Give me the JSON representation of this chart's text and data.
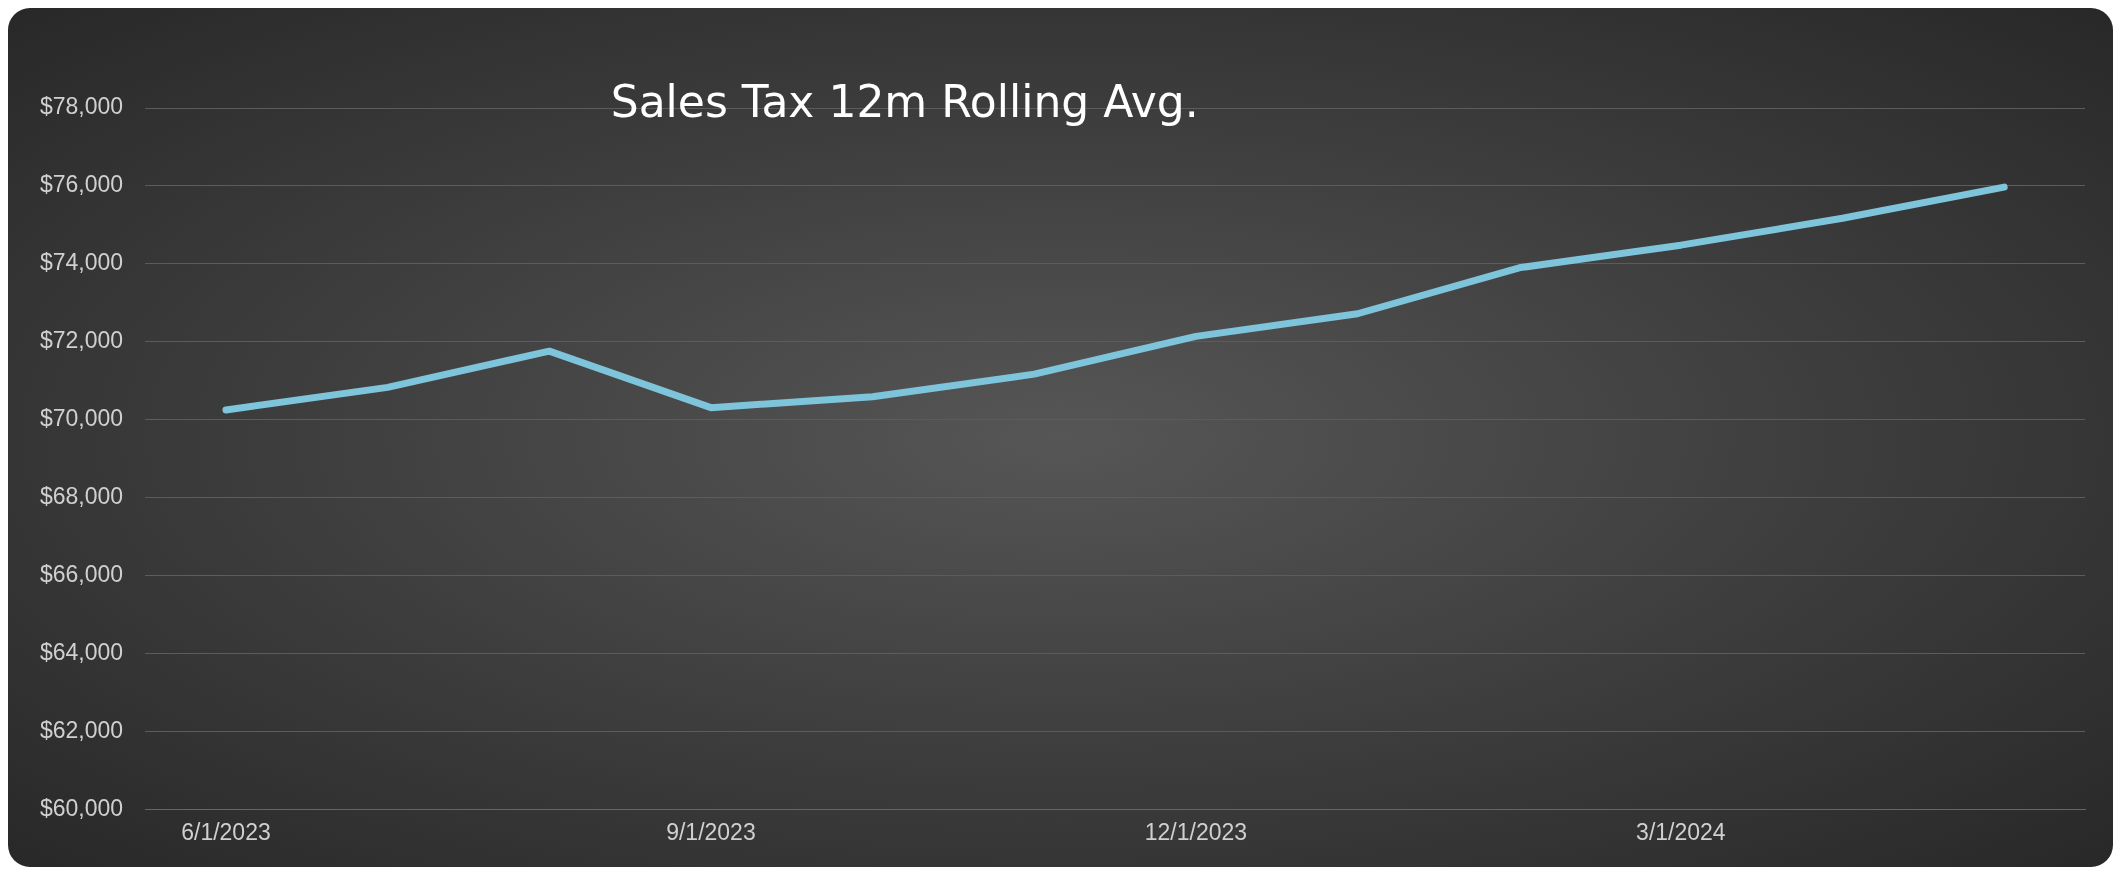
{
  "chart_data": {
    "type": "line",
    "title": "Sales Tax 12m Rolling Avg.",
    "categories": [
      "6/1/2023",
      null,
      null,
      "9/1/2023",
      null,
      null,
      "12/1/2023",
      null,
      null,
      "3/1/2024",
      null,
      null
    ],
    "series": [
      {
        "color": "#7ec4da",
        "values": [
          70250,
          70830,
          71760,
          70310,
          70590,
          71170,
          72140,
          72720,
          73900,
          74480,
          75170,
          75970
        ]
      }
    ],
    "ylim": [
      60000,
      78000
    ],
    "yticks": [
      {
        "value": 60000,
        "label": "$60,000"
      },
      {
        "value": 62000,
        "label": "$62,000"
      },
      {
        "value": 64000,
        "label": "$64,000"
      },
      {
        "value": 66000,
        "label": "$66,000"
      },
      {
        "value": 68000,
        "label": "$68,000"
      },
      {
        "value": 70000,
        "label": "$70,000"
      },
      {
        "value": 72000,
        "label": "$72,000"
      },
      {
        "value": 74000,
        "label": "$74,000"
      },
      {
        "value": 76000,
        "label": "$76,000"
      },
      {
        "value": 78000,
        "label": "$78,000"
      }
    ],
    "grid": "y",
    "legend": false,
    "marker": "none",
    "line_style": "solid"
  }
}
